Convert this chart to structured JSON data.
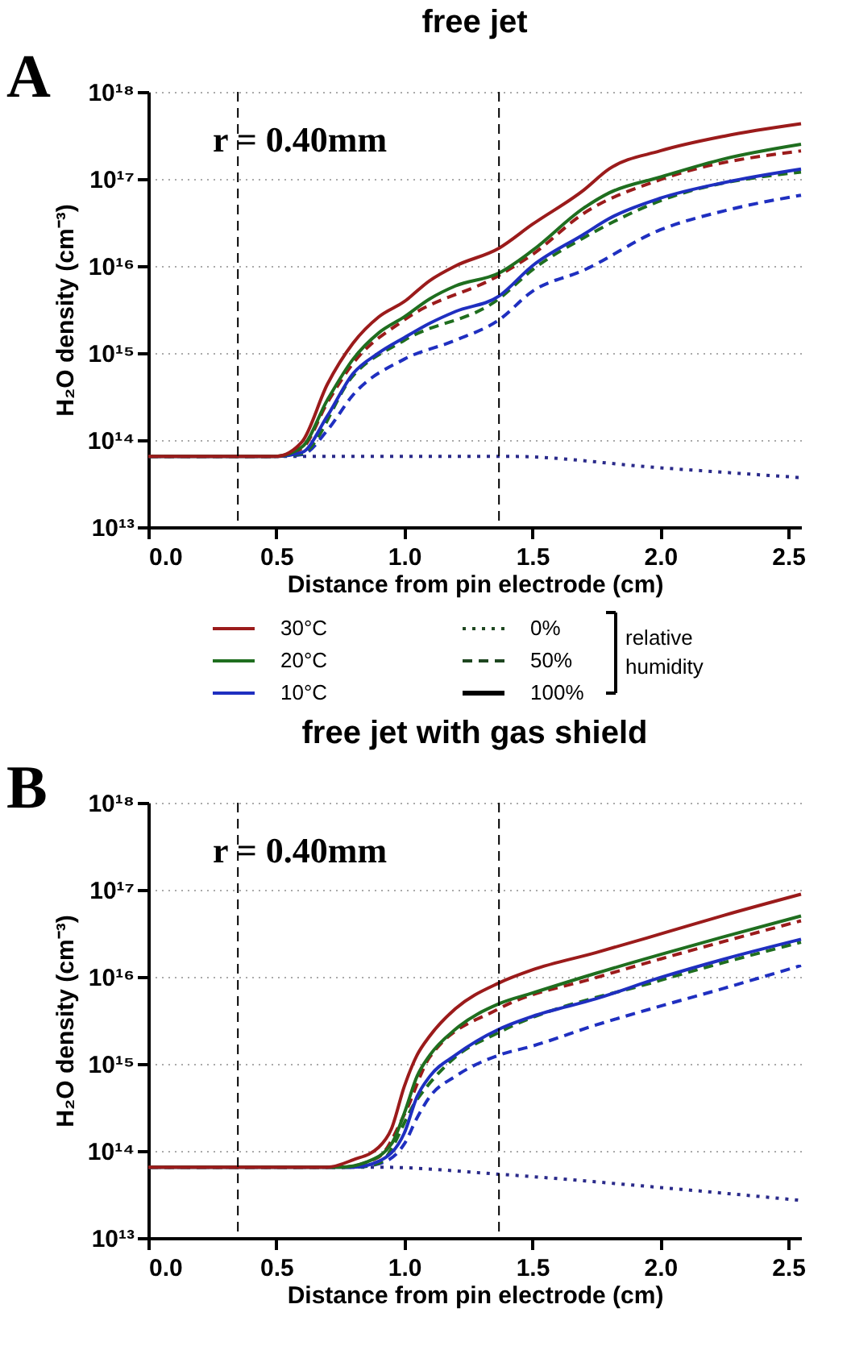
{
  "chart_data": [
    {
      "type": "line",
      "title": "free jet",
      "xlabel": "Distance from pin electrode (cm)",
      "ylabel": "H₂O density (cm⁻³)",
      "log": "y",
      "grid": "y",
      "legend": false,
      "annotations": [
        "A",
        "r = 0.40mm"
      ],
      "xlim": [
        0,
        2.55
      ],
      "xticks": [
        {
          "value": 0,
          "label": "0.0"
        },
        0.5,
        {
          "value": 1,
          "label": "1.0"
        },
        1.5,
        {
          "value": 2,
          "label": "2.0"
        },
        2.5
      ],
      "ylim": [
        10000000000000.0,
        1e+18
      ],
      "yticks": [
        {
          "value": 10000000000000.0,
          "label": "10¹³"
        },
        {
          "value": 100000000000000.0,
          "label": "10¹⁴"
        },
        {
          "value": 1000000000000000.0,
          "label": "10¹⁵"
        },
        {
          "value": 1e+16,
          "label": "10¹⁶"
        },
        {
          "value": 1e+17,
          "label": "10¹⁷"
        },
        {
          "value": 1e+18,
          "label": "10¹⁸"
        }
      ],
      "ref_lines": [
        {
          "axis": "x",
          "value": 0.35,
          "color": "#000000",
          "line_style": "dashed"
        },
        {
          "axis": "x",
          "value": 1.37,
          "color": "#000000",
          "line_style": "dashed"
        }
      ],
      "series": [
        {
          "color": "#2a2a8a",
          "line_style": "dotted",
          "x": [
            0,
            0.5,
            1.4,
            2.0,
            2.55
          ],
          "values": [
            65000000000000.0,
            65000000000000.0,
            65000000000000.0,
            48000000000000.0,
            37000000000000.0
          ]
        },
        {
          "color": "#1f2fc0",
          "line_style": "dashed",
          "x": [
            0,
            0.5,
            0.6,
            0.7,
            0.8,
            1.0,
            1.2,
            1.37,
            1.5,
            1.7,
            2.0,
            2.25,
            2.55
          ],
          "values": [
            65000000000000.0,
            65000000000000.0,
            68000000000000.0,
            130000000000000.0,
            330000000000000.0,
            850000000000000.0,
            1400000000000000.0,
            2400000000000000.0,
            5100000000000000.0,
            8900000000000000.0,
            2.6e+16,
            4.3e+16,
            6.5e+16
          ]
        },
        {
          "color": "#1f6e1f",
          "line_style": "dashed",
          "x": [
            0,
            0.5,
            0.6,
            0.8,
            1.0,
            1.37,
            1.5,
            1.7,
            2.0,
            2.55
          ],
          "values": [
            65000000000000.0,
            65000000000000.0,
            70000000000000.0,
            550000000000000.0,
            1400000000000000.0,
            4200000000000000.0,
            9000000000000000.0,
            2.1e+16,
            5.6e+16,
            1.2e+17
          ]
        },
        {
          "color": "#9b1b1b",
          "line_style": "dashed",
          "x": [
            0,
            0.5,
            0.6,
            0.7,
            0.8,
            1.0,
            1.37,
            1.5,
            1.7,
            2.0,
            2.55
          ],
          "values": [
            65000000000000.0,
            65000000000000.0,
            80000000000000.0,
            270000000000000.0,
            760000000000000.0,
            2400000000000000.0,
            7800000000000000.0,
            1.35e+16,
            4e+16,
            9.8e+16,
            2.1e+17
          ]
        },
        {
          "color": "#1f2fc0",
          "line_style": "solid",
          "x": [
            0,
            0.5,
            0.6,
            0.7,
            0.8,
            0.9,
            1.0,
            1.1,
            1.2,
            1.37,
            1.5,
            1.7,
            1.8,
            2.0,
            2.25,
            2.55
          ],
          "values": [
            65000000000000.0,
            65000000000000.0,
            72000000000000.0,
            190000000000000.0,
            580000000000000.0,
            1000000000000000.0,
            1500000000000000.0,
            2200000000000000.0,
            3000000000000000.0,
            4500000000000000.0,
            1e+16,
            2.3e+16,
            3.5e+16,
            6e+16,
            9.1e+16,
            1.3e+17
          ]
        },
        {
          "color": "#1f6e1f",
          "line_style": "solid",
          "x": [
            0,
            0.5,
            0.6,
            0.7,
            0.8,
            0.9,
            1.0,
            1.1,
            1.2,
            1.37,
            1.5,
            1.7,
            1.8,
            2.0,
            2.25,
            2.55
          ],
          "values": [
            65000000000000.0,
            65000000000000.0,
            83000000000000.0,
            290000000000000.0,
            850000000000000.0,
            1700000000000000.0,
            2600000000000000.0,
            4200000000000000.0,
            5900000000000000.0,
            8300000000000000.0,
            1.5e+16,
            4.6e+16,
            6.9e+16,
            1.05e+17,
            1.7e+17,
            2.5e+17
          ]
        },
        {
          "color": "#9b1b1b",
          "line_style": "solid",
          "x": [
            0,
            0.5,
            0.6,
            0.7,
            0.8,
            0.9,
            1.0,
            1.1,
            1.2,
            1.37,
            1.5,
            1.7,
            1.8,
            2.0,
            2.25,
            2.55
          ],
          "values": [
            65000000000000.0,
            65000000000000.0,
            95000000000000.0,
            440000000000000.0,
            1300000000000000.0,
            2600000000000000.0,
            3900000000000000.0,
            6800000000000000.0,
            1e+16,
            1.6e+16,
            3e+16,
            7.4e+16,
            1.3e+17,
            2.1e+17,
            3.1e+17,
            4.3e+17
          ]
        }
      ]
    },
    {
      "type": "other",
      "legend_title": "relative humidity",
      "series": [
        {
          "name": "30°C",
          "color": "#9b1b1b",
          "line_style": "solid"
        },
        {
          "name": "20°C",
          "color": "#1f6e1f",
          "line_style": "solid"
        },
        {
          "name": "10°C",
          "color": "#1f2fc0",
          "line_style": "solid"
        },
        {
          "name": "0%",
          "color": "#1e4620",
          "line_style": "dotted"
        },
        {
          "name": "50%",
          "color": "#1e4620",
          "line_style": "dashed"
        },
        {
          "name": "100%",
          "color": "#000000",
          "line_style": "solid"
        }
      ]
    },
    {
      "type": "line",
      "title": "free jet with gas shield",
      "xlabel": "Distance from pin electrode (cm)",
      "ylabel": "H₂O density (cm⁻³)",
      "log": "y",
      "grid": "y",
      "legend": false,
      "annotations": [
        "B",
        "r = 0.40mm"
      ],
      "xlim": [
        0,
        2.55
      ],
      "xticks": [
        {
          "value": 0,
          "label": "0.0"
        },
        0.5,
        {
          "value": 1,
          "label": "1.0"
        },
        1.5,
        {
          "value": 2,
          "label": "2.0"
        },
        2.5
      ],
      "ylim": [
        10000000000000.0,
        1e+18
      ],
      "yticks": [
        {
          "value": 10000000000000.0,
          "label": "10¹³"
        },
        {
          "value": 100000000000000.0,
          "label": "10¹⁴"
        },
        {
          "value": 1000000000000000.0,
          "label": "10¹⁵"
        },
        {
          "value": 1e+16,
          "label": "10¹⁶"
        },
        {
          "value": 1e+17,
          "label": "10¹⁷"
        },
        {
          "value": 1e+18,
          "label": "10¹⁸"
        }
      ],
      "ref_lines": [
        {
          "axis": "x",
          "value": 0.35,
          "color": "#000000",
          "line_style": "dashed"
        },
        {
          "axis": "x",
          "value": 1.37,
          "color": "#000000",
          "line_style": "dashed"
        }
      ],
      "series": [
        {
          "color": "#2a2a8a",
          "line_style": "dotted",
          "x": [
            0,
            0.9,
            1.37,
            2.0,
            2.55
          ],
          "values": [
            65000000000000.0,
            65000000000000.0,
            54000000000000.0,
            38000000000000.0,
            27000000000000.0
          ]
        },
        {
          "color": "#1f2fc0",
          "line_style": "dashed",
          "x": [
            0,
            0.8,
            0.9,
            1.0,
            1.05,
            1.1,
            1.2,
            1.37,
            1.5,
            1.75,
            2.0,
            2.25,
            2.55
          ],
          "values": [
            65000000000000.0,
            65000000000000.0,
            71000000000000.0,
            120000000000000.0,
            240000000000000.0,
            420000000000000.0,
            720000000000000.0,
            1260000000000000.0,
            1600000000000000.0,
            2800000000000000.0,
            4600000000000000.0,
            7400000000000000.0,
            1.35e+16
          ]
        },
        {
          "color": "#1f6e1f",
          "line_style": "dashed",
          "x": [
            0,
            0.8,
            0.9,
            1.05,
            1.2,
            1.37,
            2.0,
            2.55
          ],
          "values": [
            65000000000000.0,
            65000000000000.0,
            72000000000000.0,
            390000000000000.0,
            1200000000000000.0,
            2300000000000000.0,
            9100000000000000.0,
            2.5e+16
          ]
        },
        {
          "color": "#9b1b1b",
          "line_style": "dashed",
          "x": [
            0,
            0.75,
            0.9,
            1.0,
            1.1,
            1.37,
            1.75,
            2.0,
            2.55
          ],
          "values": [
            65000000000000.0,
            65000000000000.0,
            85000000000000.0,
            260000000000000.0,
            1200000000000000.0,
            4300000000000000.0,
            9800000000000000.0,
            1.6e+16,
            4.4e+16
          ]
        },
        {
          "color": "#1f2fc0",
          "line_style": "solid",
          "x": [
            0,
            0.8,
            0.9,
            1.0,
            1.05,
            1.1,
            1.2,
            1.37,
            1.5,
            1.75,
            2.0,
            2.25,
            2.55
          ],
          "values": [
            65000000000000.0,
            65000000000000.0,
            76000000000000.0,
            160000000000000.0,
            420000000000000.0,
            720000000000000.0,
            1260000000000000.0,
            2500000000000000.0,
            3500000000000000.0,
            5600000000000000.0,
            9800000000000000.0,
            1.6e+16,
            2.7e+16
          ]
        },
        {
          "color": "#1f6e1f",
          "line_style": "solid",
          "x": [
            0,
            0.75,
            0.85,
            0.95,
            1.0,
            1.05,
            1.1,
            1.2,
            1.37,
            1.5,
            1.75,
            2.0,
            2.25,
            2.55
          ],
          "values": [
            65000000000000.0,
            65000000000000.0,
            74000000000000.0,
            120000000000000.0,
            270000000000000.0,
            720000000000000.0,
            1260000000000000.0,
            2500000000000000.0,
            4900000000000000.0,
            6500000000000000.0,
            1.1e+16,
            1.8e+16,
            2.9e+16,
            5e+16
          ]
        },
        {
          "color": "#9b1b1b",
          "line_style": "solid",
          "x": [
            0,
            0.7,
            0.8,
            0.9,
            0.95,
            1.0,
            1.05,
            1.1,
            1.2,
            1.37,
            1.5,
            1.75,
            2.0,
            2.25,
            2.55
          ],
          "values": [
            65000000000000.0,
            65000000000000.0,
            79000000000000.0,
            110000000000000.0,
            180000000000000.0,
            550000000000000.0,
            1260000000000000.0,
            2100000000000000.0,
            4300000000000000.0,
            8500000000000000.0,
            1.2e+16,
            1.9e+16,
            3.1e+16,
            5.1e+16,
            8.9e+16
          ]
        }
      ]
    }
  ]
}
